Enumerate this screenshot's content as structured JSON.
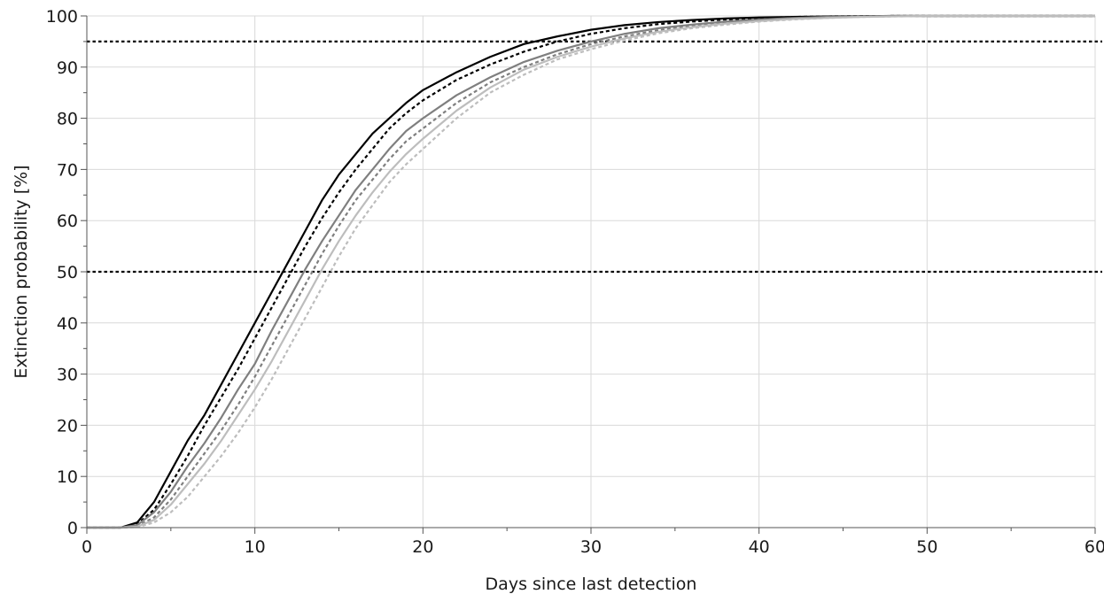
{
  "chart_data": {
    "type": "line",
    "title": "",
    "xlabel": "Days since last detection",
    "ylabel": "Extinction probability [%]",
    "xlim": [
      0,
      60
    ],
    "ylim": [
      0,
      100
    ],
    "x_ticks": [
      0,
      10,
      20,
      30,
      40,
      50,
      60
    ],
    "y_ticks": [
      0,
      10,
      20,
      30,
      40,
      50,
      60,
      70,
      80,
      90,
      100
    ],
    "x_minor_step": 5,
    "y_minor_step": 5,
    "grid": true,
    "legend": "none",
    "reference_lines": [
      {
        "y": 95,
        "style": "dotted",
        "color": "#000000"
      },
      {
        "y": 50,
        "style": "dotted",
        "color": "#000000"
      }
    ],
    "x": [
      0,
      2,
      3,
      4,
      5,
      6,
      7,
      8,
      9,
      10,
      11,
      12,
      13,
      14,
      15,
      16,
      17,
      18,
      19,
      20,
      22,
      24,
      26,
      28,
      30,
      32,
      34,
      36,
      38,
      40,
      42,
      44,
      46,
      48,
      50,
      55,
      60
    ],
    "series": [
      {
        "color": "#000000",
        "dash": "solid",
        "values": [
          0,
          0,
          1,
          5,
          11,
          17,
          22,
          28,
          34,
          40,
          46,
          52,
          58,
          64,
          69,
          73,
          77,
          80,
          83,
          85.5,
          89,
          92,
          94.5,
          96,
          97.3,
          98.2,
          98.8,
          99.2,
          99.5,
          99.7,
          99.8,
          99.9,
          99.95,
          100,
          100,
          100,
          100
        ]
      },
      {
        "color": "#000000",
        "dash": "dotted",
        "values": [
          0,
          0,
          0.7,
          3.5,
          8.5,
          14,
          20,
          25.5,
          31,
          37,
          43,
          49,
          55,
          60.5,
          65.5,
          70,
          74,
          78,
          81,
          83.5,
          87.5,
          90.5,
          93,
          95,
          96.5,
          97.6,
          98.4,
          98.9,
          99.3,
          99.6,
          99.8,
          99.9,
          99.95,
          100,
          100,
          100,
          100
        ]
      },
      {
        "color": "#7f7f7f",
        "dash": "solid",
        "values": [
          0,
          0,
          0.5,
          3,
          7,
          12,
          16.5,
          21.5,
          27,
          32,
          38.5,
          44.5,
          50.5,
          56,
          61,
          66,
          70,
          74,
          77.5,
          80,
          84.5,
          88,
          91,
          93.2,
          95,
          96.5,
          97.6,
          98.3,
          98.9,
          99.3,
          99.6,
          99.8,
          99.9,
          100,
          100,
          100,
          100
        ]
      },
      {
        "color": "#7f7f7f",
        "dash": "dotted",
        "values": [
          0,
          0,
          0.3,
          2,
          5.5,
          10,
          14.5,
          19,
          24,
          29.5,
          35.5,
          41.5,
          47.5,
          53.5,
          59,
          64,
          68,
          72,
          75.5,
          78,
          83,
          87,
          90,
          92.5,
          94.5,
          96,
          97.2,
          98,
          98.7,
          99.1,
          99.5,
          99.7,
          99.85,
          99.95,
          100,
          100,
          100
        ]
      },
      {
        "color": "#bdbdbd",
        "dash": "solid",
        "values": [
          0,
          0,
          0.2,
          1.5,
          4.5,
          8.5,
          12.5,
          17,
          22,
          27,
          32.5,
          38.5,
          44.5,
          50.5,
          56,
          61,
          65.5,
          69.5,
          73,
          76,
          81.5,
          86,
          89.5,
          92,
          94,
          95.6,
          96.9,
          97.8,
          98.5,
          99,
          99.4,
          99.6,
          99.8,
          99.9,
          100,
          100,
          100
        ]
      },
      {
        "color": "#bdbdbd",
        "dash": "dotted",
        "values": [
          0,
          0,
          0.1,
          1,
          3,
          6,
          10,
          14,
          18.5,
          23.5,
          29,
          35,
          41,
          47,
          53,
          58.5,
          63,
          67.5,
          71,
          74,
          80,
          85,
          88.5,
          91.5,
          93.5,
          95.2,
          96.6,
          97.6,
          98.3,
          98.9,
          99.3,
          99.6,
          99.8,
          99.9,
          100,
          100,
          100
        ]
      }
    ]
  }
}
